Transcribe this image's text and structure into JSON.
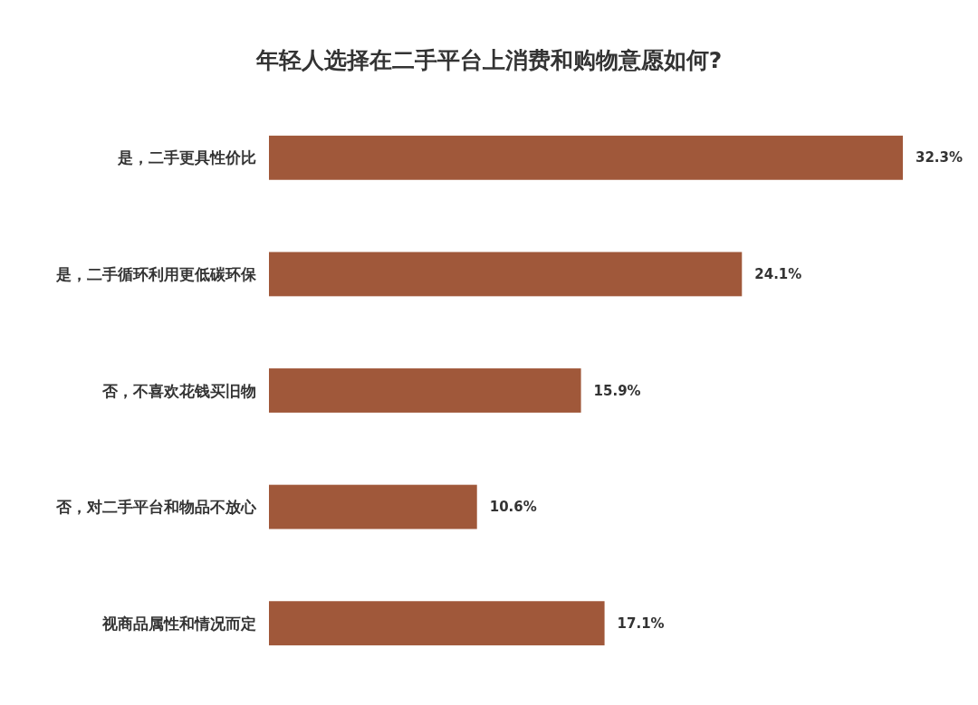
{
  "chart_data": {
    "type": "bar",
    "orientation": "horizontal",
    "title": "年轻人选择在二手平台上消费和购物意愿如何?",
    "categories": [
      "是，二手更具性价比",
      "是，二手循环利用更低碳环保",
      "否，不喜欢花钱买旧物",
      "否，对二手平台和物品不放心",
      "视商品属性和情况而定"
    ],
    "values": [
      32.3,
      24.1,
      15.9,
      10.6,
      17.1
    ],
    "value_labels": [
      "32.3%",
      "24.1%",
      "15.9%",
      "10.6%",
      "17.1%"
    ],
    "color": "#a0583a"
  }
}
